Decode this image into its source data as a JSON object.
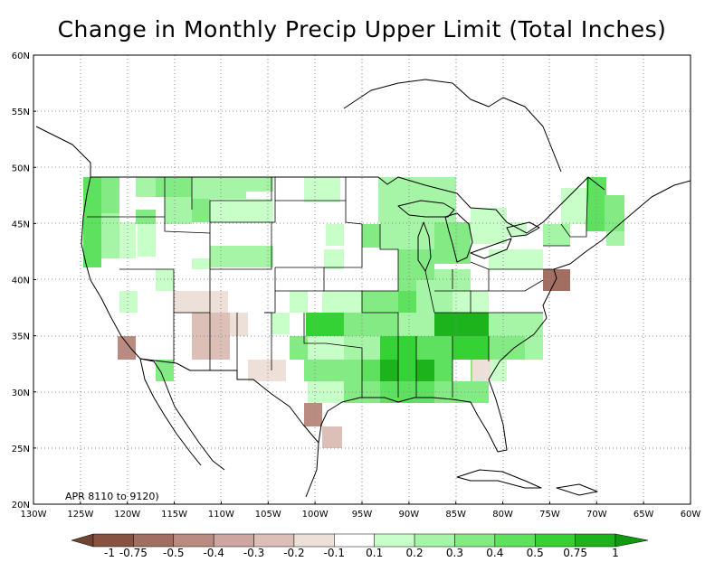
{
  "title": "Change in Monthly Precip Upper Limit (Total Inches)",
  "period_label": "APR 8110 to 9120)",
  "lat_labels": [
    "20N",
    "25N",
    "30N",
    "35N",
    "40N",
    "45N",
    "50N",
    "55N",
    "60N"
  ],
  "lon_labels": [
    "130W",
    "125W",
    "120W",
    "115W",
    "110W",
    "105W",
    "100W",
    "95W",
    "90W",
    "85W",
    "80W",
    "75W",
    "70W",
    "65W",
    "60W"
  ],
  "legend": {
    "labels": [
      "-1",
      "-0.75",
      "-0.5",
      "-0.4",
      "-0.3",
      "-0.2",
      "-0.1",
      "0.1",
      "0.2",
      "0.3",
      "0.4",
      "0.5",
      "0.75",
      "1"
    ],
    "colors": [
      "#875340",
      "#a26e61",
      "#b98b81",
      "#cca69f",
      "#dcc0b8",
      "#ede0d9",
      "#ffffff",
      "#c8ffc8",
      "#a6f5a6",
      "#84eb84",
      "#5ee15e",
      "#34d234",
      "#1cb31c"
    ],
    "low_arrow_color": "#6f4433",
    "high_arrow_color": "#0f9a0f"
  }
}
